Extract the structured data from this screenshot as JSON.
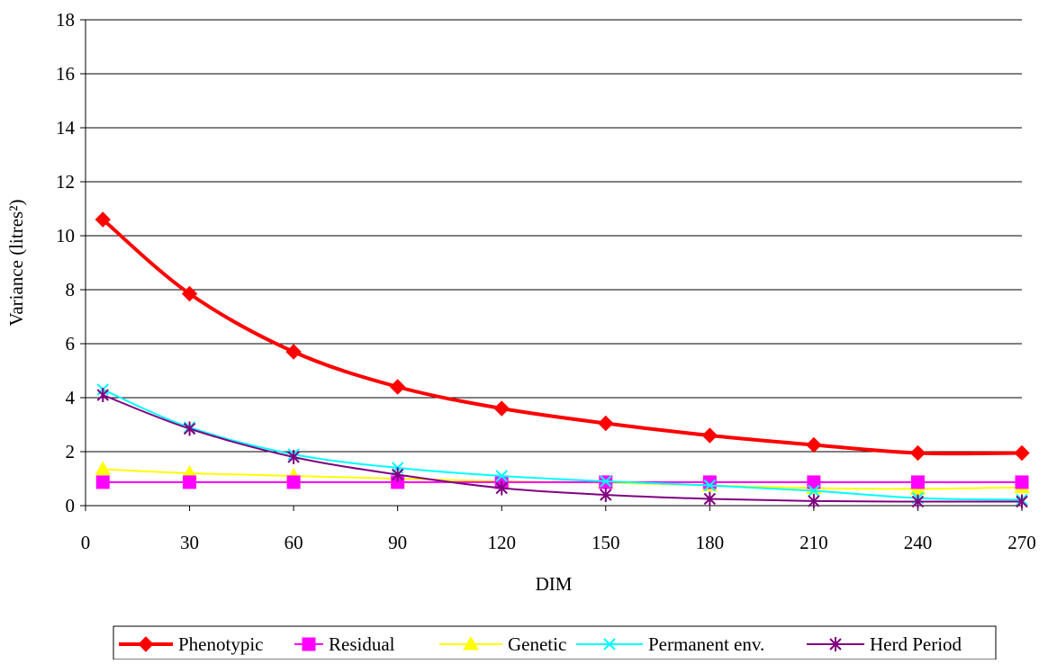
{
  "chart_data": {
    "type": "line",
    "xlabel": "DIM",
    "ylabel": "Variance (litres²)",
    "xlim": [
      0,
      270
    ],
    "ylim": [
      0,
      18
    ],
    "xticks": [
      0,
      30,
      60,
      90,
      120,
      150,
      180,
      210,
      240,
      270
    ],
    "yticks": [
      0,
      2,
      4,
      6,
      8,
      10,
      12,
      14,
      16,
      18
    ],
    "grid": "horizontal",
    "legend_position": "bottom",
    "x": [
      5,
      30,
      60,
      90,
      120,
      150,
      180,
      210,
      240,
      270
    ],
    "series": [
      {
        "name": "Phenotypic",
        "color": "#ff0000",
        "marker": "diamond",
        "line_width": "thick",
        "values": [
          10.6,
          7.85,
          5.7,
          4.4,
          3.6,
          3.05,
          2.6,
          2.25,
          1.95,
          1.95
        ]
      },
      {
        "name": "Residual",
        "color": "#ff00ff",
        "marker": "square",
        "line_width": "thin",
        "values": [
          0.87,
          0.87,
          0.87,
          0.87,
          0.87,
          0.87,
          0.87,
          0.87,
          0.87,
          0.87
        ]
      },
      {
        "name": "Genetic",
        "color": "#ffff00",
        "marker": "triangle",
        "line_width": "thin",
        "values": [
          1.35,
          1.2,
          1.1,
          1.0,
          0.9,
          0.85,
          0.75,
          0.65,
          0.62,
          0.68
        ]
      },
      {
        "name": "Permanent env.",
        "color": "#00ffff",
        "marker": "x",
        "line_width": "thin",
        "values": [
          4.3,
          2.9,
          1.9,
          1.4,
          1.1,
          0.9,
          0.75,
          0.55,
          0.28,
          0.22
        ]
      },
      {
        "name": "Herd Period",
        "color": "#800080",
        "marker": "asterisk",
        "line_width": "thin",
        "values": [
          4.1,
          2.85,
          1.8,
          1.15,
          0.65,
          0.4,
          0.25,
          0.17,
          0.15,
          0.15
        ]
      }
    ]
  }
}
